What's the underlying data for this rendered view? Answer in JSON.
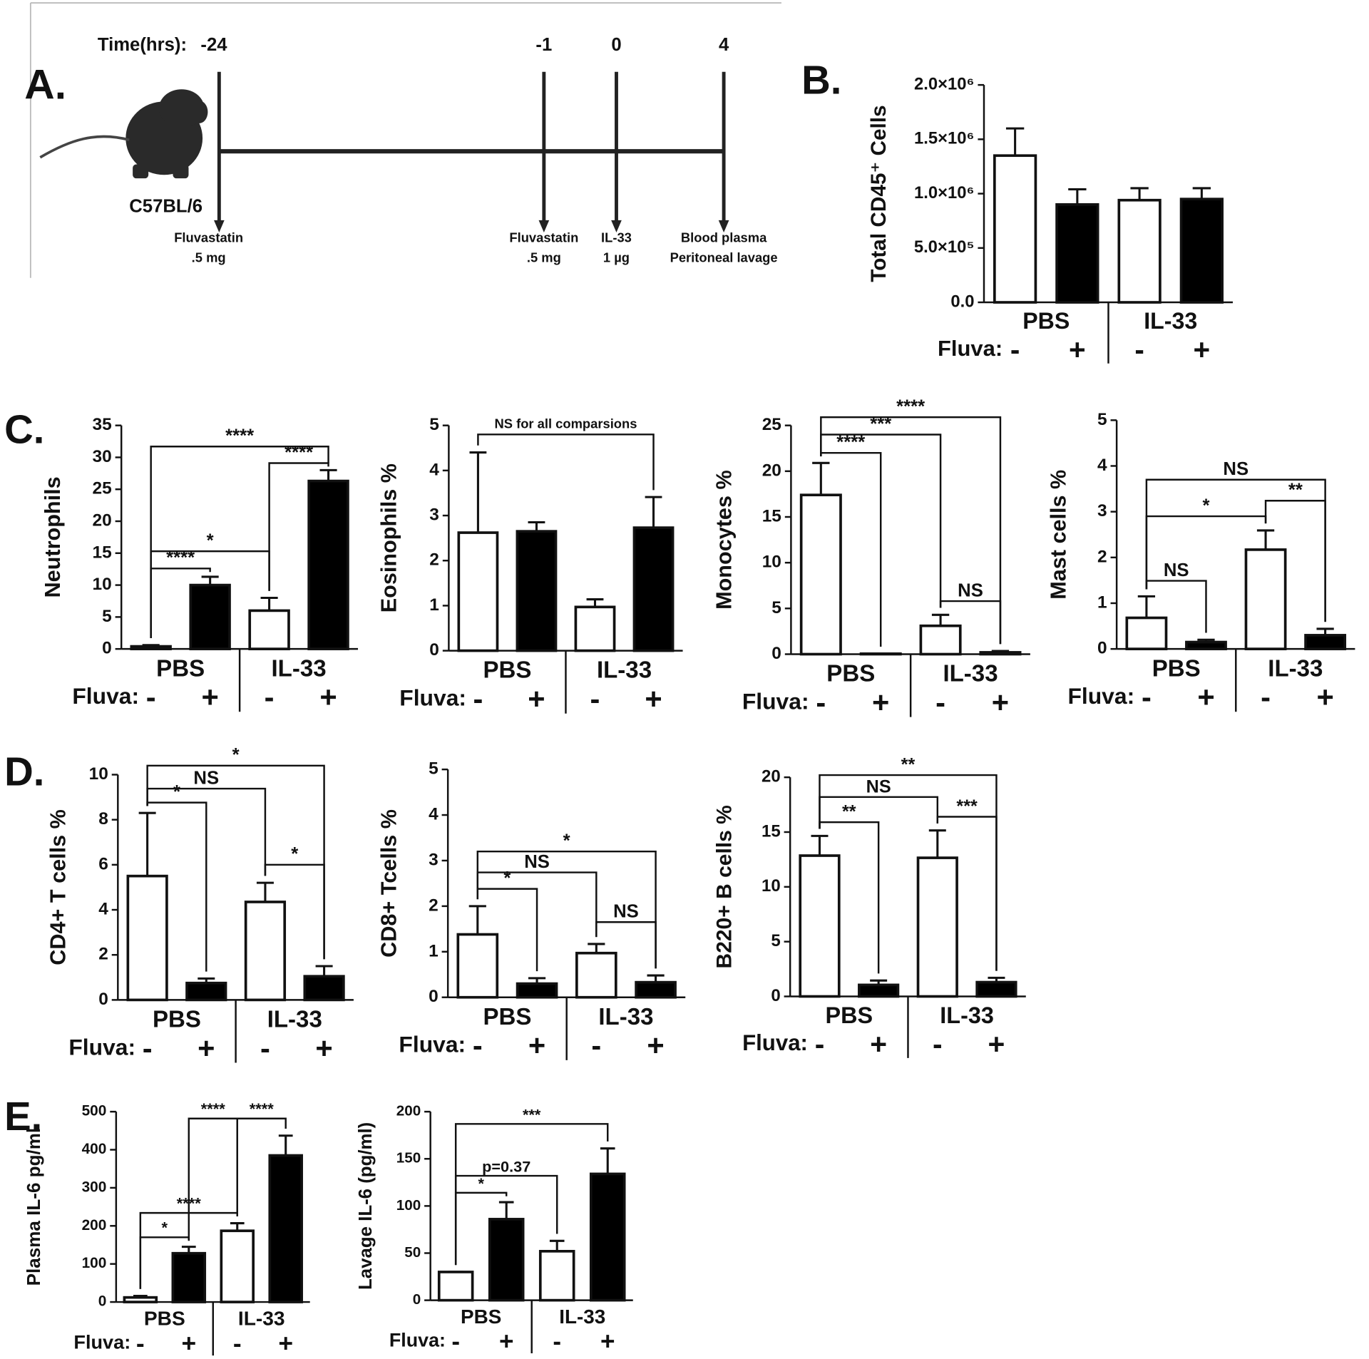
{
  "timeline": {
    "label": "A.",
    "time_label": "Time(hrs):",
    "strain": "C57BL/6",
    "events": [
      {
        "time": "-24",
        "lines": [
          "Fluvastatin",
          ".5 mg"
        ]
      },
      {
        "time": "-1",
        "lines": [
          "Fluvastatin",
          ".5 mg"
        ]
      },
      {
        "time": "0",
        "lines": [
          "IL-33",
          "1 µg"
        ]
      },
      {
        "time": "4",
        "lines": [
          "Blood plasma",
          "Peritoneal lavage"
        ]
      }
    ]
  },
  "chart_data": [
    {
      "type": "bar",
      "panel": "B.",
      "ylabel": "Total CD45⁺ Cells",
      "categories": [
        "-",
        "+",
        "-",
        "+"
      ],
      "groups": [
        "PBS",
        "IL-33"
      ],
      "row_label": "Fluva:",
      "colors": [
        "#ffffff",
        "#000000",
        "#ffffff",
        "#000000"
      ],
      "values": [
        1350000,
        900000,
        940000,
        950000
      ],
      "errors": [
        250000,
        140000,
        110000,
        100000
      ],
      "ylim": [
        0,
        2000000
      ],
      "yticks": [
        {
          "value": 0,
          "label": "0.0"
        },
        {
          "value": 500000,
          "label": "5.0×10⁵"
        },
        {
          "value": 1000000,
          "label": "1.0×10⁶"
        },
        {
          "value": 1500000,
          "label": "1.5×10⁶"
        },
        {
          "value": 2000000,
          "label": "2.0×10⁶"
        }
      ],
      "brackets": []
    },
    {
      "type": "bar",
      "panel": "C.",
      "ylabel": "Neutrophils",
      "categories": [
        "-",
        "+",
        "-",
        "+"
      ],
      "groups": [
        "PBS",
        "IL-33"
      ],
      "row_label": "Fluva:",
      "colors": [
        "#ffffff",
        "#000000",
        "#ffffff",
        "#000000"
      ],
      "values": [
        0.4,
        10,
        6,
        26.3
      ],
      "errors": [
        0.2,
        1.3,
        2,
        1.7
      ],
      "ylim": [
        0,
        35
      ],
      "yticks": [
        0,
        5,
        10,
        15,
        20,
        25,
        30,
        35
      ],
      "brackets": [
        {
          "bars": [
            0,
            1
          ],
          "y": 12.6,
          "label": "****"
        },
        {
          "bars": [
            0,
            2
          ],
          "y": 15.3,
          "label": "*"
        },
        {
          "bars": [
            2,
            3
          ],
          "y": 29.1,
          "label": "****"
        },
        {
          "bars": [
            0,
            3
          ],
          "y": 31.7,
          "label": "****"
        }
      ]
    },
    {
      "type": "bar",
      "ylabel": "Eosinophils %",
      "categories": [
        "-",
        "+",
        "-",
        "+"
      ],
      "groups": [
        "PBS",
        "IL-33"
      ],
      "row_label": "Fluva:",
      "colors": [
        "#ffffff",
        "#000000",
        "#ffffff",
        "#000000"
      ],
      "values": [
        2.62,
        2.65,
        0.97,
        2.73
      ],
      "errors": [
        1.78,
        0.2,
        0.17,
        0.68
      ],
      "ylim": [
        0,
        5
      ],
      "yticks": [
        0,
        1,
        2,
        3,
        4,
        5
      ],
      "brackets": [
        {
          "bars": [
            0,
            3
          ],
          "y": 4.8,
          "label": "NS for all comparsions"
        }
      ]
    },
    {
      "type": "bar",
      "ylabel": "Monocytes %",
      "categories": [
        "-",
        "+",
        "-",
        "+"
      ],
      "groups": [
        "PBS",
        "IL-33"
      ],
      "row_label": "Fluva:",
      "colors": [
        "#ffffff",
        "#000000",
        "#ffffff",
        "#000000"
      ],
      "values": [
        17.4,
        0.05,
        3.1,
        0.2
      ],
      "errors": [
        3.5,
        0,
        1.2,
        0.15
      ],
      "ylim": [
        0,
        25
      ],
      "yticks": [
        0,
        5,
        10,
        15,
        20,
        25
      ],
      "brackets": [
        {
          "bars": [
            0,
            1
          ],
          "y": 22,
          "label": "****"
        },
        {
          "bars": [
            0,
            2
          ],
          "y": 24,
          "label": "***"
        },
        {
          "bars": [
            0,
            3
          ],
          "y": 25.9,
          "label": "****"
        },
        {
          "bars": [
            2,
            3
          ],
          "y": 5.8,
          "label": "NS"
        }
      ]
    },
    {
      "type": "bar",
      "ylabel": "Mast cells %",
      "categories": [
        "-",
        "+",
        "-",
        "+"
      ],
      "groups": [
        "PBS",
        "IL-33"
      ],
      "row_label": "Fluva:",
      "colors": [
        "#ffffff",
        "#000000",
        "#ffffff",
        "#000000"
      ],
      "values": [
        0.68,
        0.15,
        2.17,
        0.3
      ],
      "errors": [
        0.47,
        0.05,
        0.42,
        0.14
      ],
      "ylim": [
        0,
        5
      ],
      "yticks": [
        0,
        1,
        2,
        3,
        4,
        5
      ],
      "brackets": [
        {
          "bars": [
            0,
            1
          ],
          "y": 1.49,
          "label": "NS"
        },
        {
          "bars": [
            0,
            2
          ],
          "y": 2.9,
          "label": "*"
        },
        {
          "bars": [
            2,
            3
          ],
          "y": 3.24,
          "label": "**"
        },
        {
          "bars": [
            0,
            3
          ],
          "y": 3.7,
          "label": "NS"
        }
      ]
    },
    {
      "type": "bar",
      "panel": "D.",
      "ylabel": "CD4+ T cells %",
      "categories": [
        "-",
        "+",
        "-",
        "+"
      ],
      "groups": [
        "PBS",
        "IL-33"
      ],
      "row_label": "Fluva:",
      "colors": [
        "#ffffff",
        "#000000",
        "#ffffff",
        "#000000"
      ],
      "values": [
        5.5,
        0.75,
        4.35,
        1.05
      ],
      "errors": [
        2.8,
        0.2,
        0.85,
        0.45
      ],
      "ylim": [
        0,
        10
      ],
      "yticks": [
        0,
        2,
        4,
        6,
        8,
        10
      ],
      "brackets": [
        {
          "bars": [
            0,
            1
          ],
          "y": 8.76,
          "label": "*"
        },
        {
          "bars": [
            0,
            2
          ],
          "y": 9.38,
          "label": "NS"
        },
        {
          "bars": [
            0,
            3
          ],
          "y": 10.4,
          "label": "*"
        },
        {
          "bars": [
            2,
            3
          ],
          "y": 6,
          "label": "*"
        }
      ]
    },
    {
      "type": "bar",
      "ylabel": "CD8+ Tcells %",
      "categories": [
        "-",
        "+",
        "-",
        "+"
      ],
      "groups": [
        "PBS",
        "IL-33"
      ],
      "row_label": "Fluva:",
      "colors": [
        "#ffffff",
        "#000000",
        "#ffffff",
        "#000000"
      ],
      "values": [
        1.38,
        0.3,
        0.97,
        0.33
      ],
      "errors": [
        0.62,
        0.12,
        0.2,
        0.15
      ],
      "ylim": [
        0,
        5
      ],
      "yticks": [
        0,
        1,
        2,
        3,
        4,
        5
      ],
      "brackets": [
        {
          "bars": [
            0,
            1
          ],
          "y": 2.38,
          "label": "*"
        },
        {
          "bars": [
            0,
            2
          ],
          "y": 2.74,
          "label": "NS"
        },
        {
          "bars": [
            0,
            3
          ],
          "y": 3.2,
          "label": "*"
        },
        {
          "bars": [
            2,
            3
          ],
          "y": 1.65,
          "label": "NS"
        }
      ]
    },
    {
      "type": "bar",
      "ylabel": "B220+ B cells %",
      "categories": [
        "-",
        "+",
        "-",
        "+"
      ],
      "groups": [
        "PBS",
        "IL-33"
      ],
      "row_label": "Fluva:",
      "colors": [
        "#ffffff",
        "#000000",
        "#ffffff",
        "#000000"
      ],
      "values": [
        12.85,
        1.05,
        12.65,
        1.3
      ],
      "errors": [
        1.8,
        0.4,
        2.5,
        0.4
      ],
      "ylim": [
        0,
        20
      ],
      "yticks": [
        0,
        5,
        10,
        15,
        20
      ],
      "brackets": [
        {
          "bars": [
            0,
            1
          ],
          "y": 15.9,
          "label": "**"
        },
        {
          "bars": [
            0,
            2
          ],
          "y": 18.2,
          "label": "NS"
        },
        {
          "bars": [
            2,
            3
          ],
          "y": 16.4,
          "label": "***"
        },
        {
          "bars": [
            0,
            3
          ],
          "y": 20.2,
          "label": "**"
        }
      ]
    },
    {
      "type": "bar",
      "panel": "E.",
      "ylabel": "Plasma IL-6 pg/ml",
      "categories": [
        "-",
        "+",
        "-",
        "+"
      ],
      "groups": [
        "PBS",
        "IL-33"
      ],
      "row_label": "Fluva:",
      "colors": [
        "#ffffff",
        "#000000",
        "#ffffff",
        "#000000"
      ],
      "values": [
        12,
        128,
        187,
        385
      ],
      "errors": [
        4,
        17,
        20,
        52
      ],
      "ylim": [
        0,
        500
      ],
      "yticks": [
        0,
        100,
        200,
        300,
        400,
        500
      ],
      "brackets": [
        {
          "bars": [
            0,
            1
          ],
          "y": 170,
          "label": "*"
        },
        {
          "bars": [
            0,
            2
          ],
          "y": 234,
          "label": "****"
        },
        {
          "bars": [
            1,
            2
          ],
          "y": 482,
          "label": "****"
        },
        {
          "bars": [
            2,
            3
          ],
          "y": 482,
          "label": "****"
        }
      ]
    },
    {
      "type": "bar",
      "ylabel": "Lavage IL-6 (pg/ml)",
      "categories": [
        "-",
        "+",
        "-",
        "+"
      ],
      "groups": [
        "PBS",
        "IL-33"
      ],
      "row_label": "Fluva:",
      "colors": [
        "#ffffff",
        "#000000",
        "#ffffff",
        "#000000"
      ],
      "values": [
        30,
        86,
        52,
        134
      ],
      "errors": [
        0,
        18,
        11,
        27
      ],
      "ylim": [
        0,
        200
      ],
      "yticks": [
        0,
        50,
        100,
        150,
        200
      ],
      "brackets": [
        {
          "bars": [
            0,
            1
          ],
          "y": 114,
          "label": "*"
        },
        {
          "bars": [
            0,
            2
          ],
          "y": 132,
          "label": "p=0.37"
        },
        {
          "bars": [
            0,
            3
          ],
          "y": 187,
          "label": "***"
        }
      ]
    }
  ]
}
